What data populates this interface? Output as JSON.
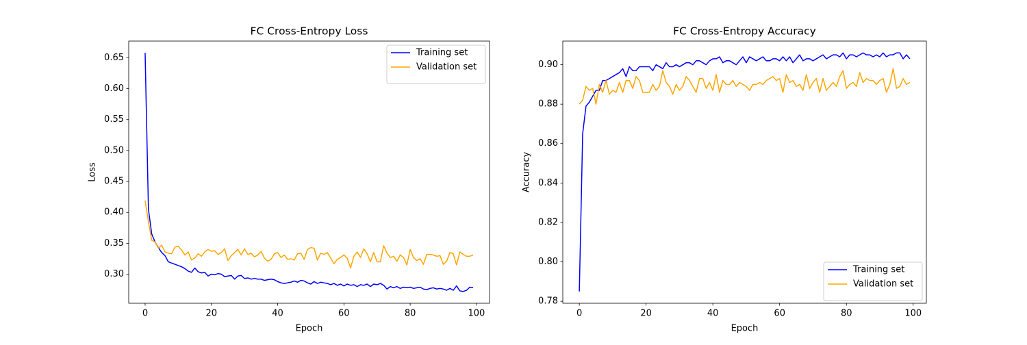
{
  "chart_data": [
    {
      "type": "line",
      "title": "FC Cross-Entropy Loss",
      "xlabel": "Epoch",
      "ylabel": "Loss",
      "legend": "upper right",
      "grid": false,
      "x": [
        0,
        1,
        2,
        3,
        4,
        5,
        6,
        7,
        8,
        9,
        10,
        11,
        12,
        13,
        14,
        15,
        16,
        17,
        18,
        19,
        20,
        21,
        22,
        23,
        24,
        25,
        26,
        27,
        28,
        29,
        30,
        31,
        32,
        33,
        34,
        35,
        36,
        37,
        38,
        39,
        40,
        41,
        42,
        43,
        44,
        45,
        46,
        47,
        48,
        49,
        50,
        51,
        52,
        53,
        54,
        55,
        56,
        57,
        58,
        59,
        60,
        61,
        62,
        63,
        64,
        65,
        66,
        67,
        68,
        69,
        70,
        71,
        72,
        73,
        74,
        75,
        76,
        77,
        78,
        79,
        80,
        81,
        82,
        83,
        84,
        85,
        86,
        87,
        88,
        89,
        90,
        91,
        92,
        93,
        94,
        95,
        96,
        97,
        98,
        99
      ],
      "xlim": [
        -4.95,
        103.95
      ],
      "xticks": [
        0,
        20,
        40,
        60,
        80,
        100
      ],
      "ylim": [
        0.253,
        0.677
      ],
      "yticks": [
        {
          "value": 0.3,
          "label": "0.30"
        },
        0.35,
        {
          "value": 0.4,
          "label": "0.40"
        },
        0.45,
        {
          "value": 0.5,
          "label": "0.50"
        },
        0.55,
        {
          "value": 0.6,
          "label": "0.60"
        },
        0.65
      ],
      "series": [
        {
          "name": "Training set",
          "color": "#0000ff",
          "values": [
            0.658,
            0.405,
            0.365,
            0.352,
            0.343,
            0.335,
            0.33,
            0.32,
            0.318,
            0.316,
            0.314,
            0.312,
            0.309,
            0.305,
            0.303,
            0.31,
            0.304,
            0.302,
            0.303,
            0.297,
            0.3,
            0.299,
            0.301,
            0.3,
            0.296,
            0.297,
            0.298,
            0.292,
            0.297,
            0.298,
            0.293,
            0.294,
            0.292,
            0.293,
            0.292,
            0.292,
            0.29,
            0.291,
            0.292,
            0.291,
            0.288,
            0.286,
            0.285,
            0.286,
            0.287,
            0.289,
            0.287,
            0.29,
            0.289,
            0.286,
            0.284,
            0.288,
            0.285,
            0.287,
            0.286,
            0.285,
            0.283,
            0.285,
            0.282,
            0.284,
            0.281,
            0.284,
            0.282,
            0.283,
            0.28,
            0.283,
            0.282,
            0.284,
            0.28,
            0.284,
            0.283,
            0.285,
            0.282,
            0.276,
            0.28,
            0.278,
            0.28,
            0.277,
            0.279,
            0.278,
            0.279,
            0.277,
            0.278,
            0.279,
            0.276,
            0.275,
            0.277,
            0.278,
            0.276,
            0.277,
            0.276,
            0.274,
            0.277,
            0.274,
            0.281,
            0.273,
            0.272,
            0.274,
            0.279,
            0.278
          ]
        },
        {
          "name": "Validation set",
          "color": "#ffa500",
          "values": [
            0.419,
            0.385,
            0.355,
            0.352,
            0.342,
            0.347,
            0.336,
            0.334,
            0.333,
            0.344,
            0.345,
            0.339,
            0.331,
            0.336,
            0.323,
            0.326,
            0.333,
            0.329,
            0.336,
            0.34,
            0.337,
            0.338,
            0.332,
            0.335,
            0.341,
            0.322,
            0.33,
            0.335,
            0.34,
            0.331,
            0.341,
            0.332,
            0.334,
            0.328,
            0.331,
            0.337,
            0.326,
            0.321,
            0.324,
            0.333,
            0.335,
            0.327,
            0.331,
            0.324,
            0.325,
            0.323,
            0.333,
            0.334,
            0.324,
            0.34,
            0.343,
            0.342,
            0.323,
            0.334,
            0.332,
            0.335,
            0.326,
            0.317,
            0.324,
            0.327,
            0.331,
            0.326,
            0.31,
            0.329,
            0.336,
            0.327,
            0.341,
            0.333,
            0.32,
            0.335,
            0.32,
            0.32,
            0.346,
            0.334,
            0.327,
            0.329,
            0.321,
            0.331,
            0.327,
            0.315,
            0.34,
            0.327,
            0.322,
            0.325,
            0.316,
            0.332,
            0.332,
            0.331,
            0.329,
            0.33,
            0.316,
            0.321,
            0.335,
            0.333,
            0.315,
            0.336,
            0.332,
            0.329,
            0.329,
            0.331
          ]
        }
      ]
    },
    {
      "type": "line",
      "title": "FC Cross-Entropy Accuracy",
      "xlabel": "Epoch",
      "ylabel": "Accuracy",
      "legend": "lower right",
      "grid": false,
      "x": [
        0,
        1,
        2,
        3,
        4,
        5,
        6,
        7,
        8,
        9,
        10,
        11,
        12,
        13,
        14,
        15,
        16,
        17,
        18,
        19,
        20,
        21,
        22,
        23,
        24,
        25,
        26,
        27,
        28,
        29,
        30,
        31,
        32,
        33,
        34,
        35,
        36,
        37,
        38,
        39,
        40,
        41,
        42,
        43,
        44,
        45,
        46,
        47,
        48,
        49,
        50,
        51,
        52,
        53,
        54,
        55,
        56,
        57,
        58,
        59,
        60,
        61,
        62,
        63,
        64,
        65,
        66,
        67,
        68,
        69,
        70,
        71,
        72,
        73,
        74,
        75,
        76,
        77,
        78,
        79,
        80,
        81,
        82,
        83,
        84,
        85,
        86,
        87,
        88,
        89,
        90,
        91,
        92,
        93,
        94,
        95,
        96,
        97,
        98,
        99
      ],
      "xlim": [
        -4.95,
        103.95
      ],
      "xticks": [
        0,
        20,
        40,
        60,
        80,
        100
      ],
      "ylim": [
        0.779,
        0.912
      ],
      "yticks": [
        0.78,
        {
          "value": 0.8,
          "label": "0.80"
        },
        0.82,
        0.84,
        0.86,
        0.88,
        {
          "value": 0.9,
          "label": "0.90"
        }
      ],
      "series": [
        {
          "name": "Training set",
          "color": "#0000ff",
          "values": [
            0.785,
            0.865,
            0.879,
            0.881,
            0.884,
            0.887,
            0.887,
            0.892,
            0.892,
            0.893,
            0.894,
            0.895,
            0.896,
            0.898,
            0.894,
            0.899,
            0.897,
            0.897,
            0.899,
            0.899,
            0.899,
            0.899,
            0.897,
            0.9,
            0.899,
            0.898,
            0.901,
            0.899,
            0.899,
            0.9,
            0.899,
            0.9,
            0.901,
            0.901,
            0.9,
            0.902,
            0.902,
            0.901,
            0.9,
            0.902,
            0.903,
            0.903,
            0.904,
            0.901,
            0.902,
            0.902,
            0.901,
            0.9,
            0.902,
            0.904,
            0.901,
            0.904,
            0.903,
            0.902,
            0.903,
            0.904,
            0.902,
            0.902,
            0.903,
            0.903,
            0.902,
            0.904,
            0.902,
            0.904,
            0.901,
            0.903,
            0.905,
            0.902,
            0.903,
            0.903,
            0.902,
            0.903,
            0.904,
            0.905,
            0.903,
            0.904,
            0.905,
            0.905,
            0.904,
            0.906,
            0.903,
            0.905,
            0.905,
            0.904,
            0.905,
            0.906,
            0.905,
            0.905,
            0.904,
            0.905,
            0.904,
            0.906,
            0.904,
            0.905,
            0.905,
            0.906,
            0.906,
            0.903,
            0.905,
            0.903
          ]
        },
        {
          "name": "Validation set",
          "color": "#ffa500",
          "values": [
            0.88,
            0.882,
            0.889,
            0.887,
            0.888,
            0.88,
            0.89,
            0.886,
            0.892,
            0.885,
            0.887,
            0.886,
            0.891,
            0.886,
            0.892,
            0.892,
            0.888,
            0.894,
            0.892,
            0.886,
            0.886,
            0.886,
            0.89,
            0.887,
            0.889,
            0.897,
            0.891,
            0.889,
            0.885,
            0.89,
            0.887,
            0.889,
            0.894,
            0.892,
            0.889,
            0.886,
            0.893,
            0.893,
            0.888,
            0.891,
            0.887,
            0.895,
            0.886,
            0.892,
            0.89,
            0.89,
            0.892,
            0.889,
            0.891,
            0.89,
            0.889,
            0.887,
            0.89,
            0.89,
            0.891,
            0.89,
            0.892,
            0.893,
            0.894,
            0.892,
            0.893,
            0.886,
            0.895,
            0.891,
            0.892,
            0.889,
            0.89,
            0.887,
            0.895,
            0.888,
            0.891,
            0.893,
            0.886,
            0.893,
            0.887,
            0.889,
            0.891,
            0.889,
            0.894,
            0.897,
            0.888,
            0.89,
            0.891,
            0.889,
            0.896,
            0.891,
            0.893,
            0.892,
            0.892,
            0.89,
            0.892,
            0.893,
            0.886,
            0.89,
            0.898,
            0.888,
            0.889,
            0.893,
            0.89,
            0.891
          ]
        }
      ]
    }
  ]
}
